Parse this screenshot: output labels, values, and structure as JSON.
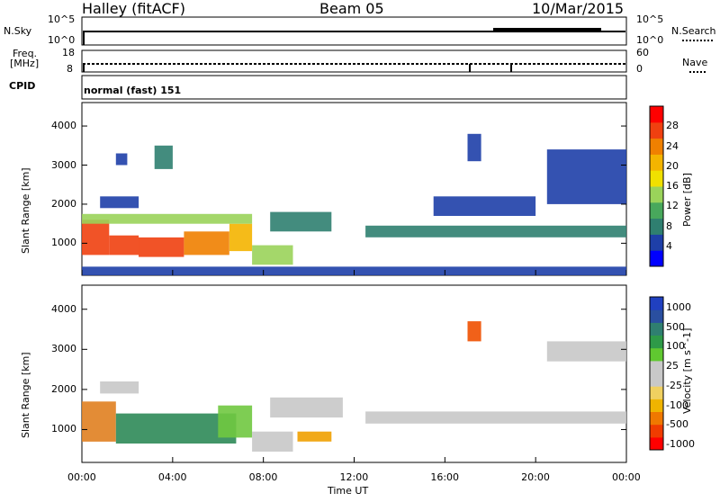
{
  "header": {
    "station": "Halley (fitACF)",
    "beam": "Beam 05",
    "date": "10/Mar/2015"
  },
  "sky_panel": {
    "left_label": "N.Sky",
    "right_label": "N.Search",
    "left_ticks": [
      "10^5",
      "10^0"
    ],
    "right_ticks": [
      "10^5",
      "10^0"
    ]
  },
  "freq_panel": {
    "left_label_1": "Freq.",
    "left_label_2": "[MHz]",
    "right_label": "Nave",
    "left_ticks": [
      "18",
      "8"
    ],
    "right_ticks": [
      "60",
      "0"
    ]
  },
  "cpid_panel": {
    "label": "CPID",
    "value": "normal (fast) 151"
  },
  "x_axis": {
    "ticks": [
      "00:00",
      "04:00",
      "08:00",
      "12:00",
      "16:00",
      "20:00",
      "00:00"
    ],
    "label": "Time UT"
  },
  "colors": {
    "power": [
      "#0000ff",
      "#1e3fa8",
      "#2f7f70",
      "#48a85c",
      "#9ad35a",
      "#f0e000",
      "#f4b400",
      "#f08000",
      "#f04010",
      "#ff0000"
    ],
    "velocity": [
      "#ff0000",
      "#f03c00",
      "#f07800",
      "#f0b400",
      "#f0d060",
      "#c8c8c8",
      "#c8c8c8",
      "#60c830",
      "#2e9a48",
      "#2f7f70",
      "#2a4fa0",
      "#2040c0"
    ]
  },
  "chart_data": [
    {
      "type": "heatmap",
      "name": "power",
      "ylabel": "Slant Range [km]",
      "yticks": [
        1000,
        2000,
        3000,
        4000
      ],
      "ylim": [
        180,
        4600
      ],
      "colorbar_label": "Power [dB]",
      "colorbar_ticks": [
        4,
        8,
        12,
        16,
        20,
        24,
        28
      ],
      "colorbar_range": [
        0,
        32
      ],
      "xlim_hours": [
        0,
        24
      ],
      "regions": [
        {
          "t0": 0.0,
          "t1": 1.2,
          "r0": 700,
          "r1": 1600,
          "level": 28
        },
        {
          "t0": 1.2,
          "t1": 2.5,
          "r0": 700,
          "r1": 1200,
          "level": 26
        },
        {
          "t0": 2.5,
          "t1": 4.5,
          "r0": 650,
          "r1": 1150,
          "level": 27
        },
        {
          "t0": 4.5,
          "t1": 6.5,
          "r0": 700,
          "r1": 1300,
          "level": 25
        },
        {
          "t0": 6.5,
          "t1": 7.5,
          "r0": 800,
          "r1": 1500,
          "level": 22
        },
        {
          "t0": 0.0,
          "t1": 7.5,
          "r0": 1500,
          "r1": 1750,
          "level": 14
        },
        {
          "t0": 7.5,
          "t1": 9.3,
          "r0": 450,
          "r1": 950,
          "level": 14
        },
        {
          "t0": 8.3,
          "t1": 11.0,
          "r0": 1300,
          "r1": 1800,
          "level": 7
        },
        {
          "t0": 12.5,
          "t1": 24.0,
          "r0": 1150,
          "r1": 1450,
          "level": 7
        },
        {
          "t0": 0.8,
          "t1": 2.5,
          "r0": 1900,
          "r1": 2200,
          "level": 6
        },
        {
          "t0": 1.5,
          "t1": 2.0,
          "r0": 3000,
          "r1": 3300,
          "level": 6
        },
        {
          "t0": 3.2,
          "t1": 4.0,
          "r0": 2900,
          "r1": 3500,
          "level": 7
        },
        {
          "t0": 17.0,
          "t1": 17.6,
          "r0": 3100,
          "r1": 3800,
          "level": 6
        },
        {
          "t0": 20.5,
          "t1": 24.0,
          "r0": 2000,
          "r1": 3400,
          "level": 6
        },
        {
          "t0": 15.5,
          "t1": 20.0,
          "r0": 1700,
          "r1": 2200,
          "level": 6
        },
        {
          "t0": 0.0,
          "t1": 24.0,
          "r0": 180,
          "r1": 400,
          "level": 6
        }
      ]
    },
    {
      "type": "heatmap",
      "name": "velocity",
      "ylabel": "Slant Range [km]",
      "yticks": [
        1000,
        2000,
        3000,
        4000
      ],
      "ylim": [
        180,
        4600
      ],
      "colorbar_label": "Velocity [m s^-1]",
      "colorbar_ticks": [
        "1000",
        "500",
        "100",
        "25",
        "-25",
        "-100",
        "-500",
        "-1000"
      ],
      "xlim_hours": [
        0,
        24
      ],
      "regions": [
        {
          "t0": 0.0,
          "t1": 1.5,
          "r0": 700,
          "r1": 1700,
          "level": "orange-green"
        },
        {
          "t0": 1.5,
          "t1": 6.8,
          "r0": 650,
          "r1": 1400,
          "level": "green"
        },
        {
          "t0": 6.0,
          "t1": 7.5,
          "r0": 800,
          "r1": 1600,
          "level": "light-green"
        },
        {
          "t0": 7.5,
          "t1": 9.3,
          "r0": 450,
          "r1": 950,
          "level": "grey"
        },
        {
          "t0": 9.5,
          "t1": 11.0,
          "r0": 700,
          "r1": 950,
          "level": "orange"
        },
        {
          "t0": 8.3,
          "t1": 11.5,
          "r0": 1300,
          "r1": 1800,
          "level": "grey"
        },
        {
          "t0": 12.5,
          "t1": 24.0,
          "r0": 1150,
          "r1": 1450,
          "level": "grey"
        },
        {
          "t0": 17.0,
          "t1": 17.6,
          "r0": 3200,
          "r1": 3700,
          "level": "red-orange"
        },
        {
          "t0": 20.5,
          "t1": 24.0,
          "r0": 2700,
          "r1": 3200,
          "level": "grey"
        },
        {
          "t0": 0.8,
          "t1": 2.5,
          "r0": 1900,
          "r1": 2200,
          "level": "grey"
        }
      ]
    }
  ]
}
